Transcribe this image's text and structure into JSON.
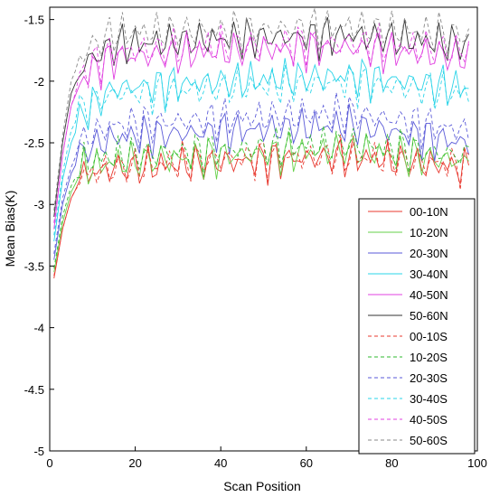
{
  "chart_data": {
    "type": "line",
    "xlabel": "Scan Position",
    "ylabel": "Mean Bias(K)",
    "xlim": [
      0,
      100
    ],
    "ylim": [
      -5,
      -1.4
    ],
    "y_axis_reversed": true,
    "xticks": [
      0,
      20,
      40,
      60,
      80,
      100
    ],
    "yticks": [
      -1.5,
      -2,
      -2.5,
      -3,
      -3.5,
      -4,
      -4.5,
      -5
    ],
    "grid": false,
    "legend_position": "bottom-right",
    "x_values": "1-98",
    "series": [
      {
        "name": "00-10N",
        "color": "#e8392f",
        "style": "solid",
        "values": [
          -3.6,
          -3.2,
          -2.95,
          -2.75,
          -2.7,
          -2.65,
          -2.6,
          -2.7
        ]
      },
      {
        "name": "10-20N",
        "color": "#66d24a",
        "style": "solid",
        "values": [
          -3.55,
          -3.15,
          -2.9,
          -2.7,
          -2.65,
          -2.6,
          -2.55,
          -2.65
        ]
      },
      {
        "name": "20-30N",
        "color": "#5a5ad8",
        "style": "solid",
        "values": [
          -3.45,
          -3.0,
          -2.75,
          -2.55,
          -2.45,
          -2.4,
          -2.35,
          -2.5
        ]
      },
      {
        "name": "30-40N",
        "color": "#2ad4e8",
        "style": "solid",
        "values": [
          -3.3,
          -2.8,
          -2.5,
          -2.25,
          -2.05,
          -2.0,
          -1.95,
          -2.05
        ]
      },
      {
        "name": "40-50N",
        "color": "#e040e0",
        "style": "solid",
        "values": [
          -3.2,
          -2.6,
          -2.2,
          -1.95,
          -1.8,
          -1.75,
          -1.72,
          -1.8
        ]
      },
      {
        "name": "50-60N",
        "color": "#333333",
        "style": "solid",
        "values": [
          -3.1,
          -2.5,
          -2.1,
          -1.85,
          -1.7,
          -1.65,
          -1.62,
          -1.7
        ]
      },
      {
        "name": "00-10S",
        "color": "#e8392f",
        "style": "dashed",
        "values": [
          -3.58,
          -3.2,
          -2.95,
          -2.75,
          -2.7,
          -2.62,
          -2.6,
          -2.68
        ]
      },
      {
        "name": "10-20S",
        "color": "#2fb82f",
        "style": "dashed",
        "values": [
          -3.52,
          -3.1,
          -2.85,
          -2.65,
          -2.6,
          -2.55,
          -2.5,
          -2.6
        ]
      },
      {
        "name": "20-30S",
        "color": "#5a5ad8",
        "style": "dashed",
        "values": [
          -3.4,
          -2.95,
          -2.7,
          -2.45,
          -2.35,
          -2.3,
          -2.25,
          -2.4
        ]
      },
      {
        "name": "30-40S",
        "color": "#2ad4e8",
        "style": "dashed",
        "values": [
          -3.25,
          -2.75,
          -2.4,
          -2.2,
          -2.1,
          -2.05,
          -2.0,
          -2.1
        ]
      },
      {
        "name": "40-50S",
        "color": "#e040e0",
        "style": "dashed",
        "values": [
          -3.15,
          -2.6,
          -2.2,
          -1.9,
          -1.75,
          -1.7,
          -1.68,
          -1.75
        ]
      },
      {
        "name": "50-60S",
        "color": "#888888",
        "style": "dashed",
        "values": [
          -3.05,
          -2.45,
          -2.0,
          -1.75,
          -1.6,
          -1.58,
          -1.55,
          -1.62
        ]
      }
    ],
    "series_x_anchor": [
      1,
      3,
      5,
      8,
      15,
      40,
      70,
      98
    ]
  }
}
